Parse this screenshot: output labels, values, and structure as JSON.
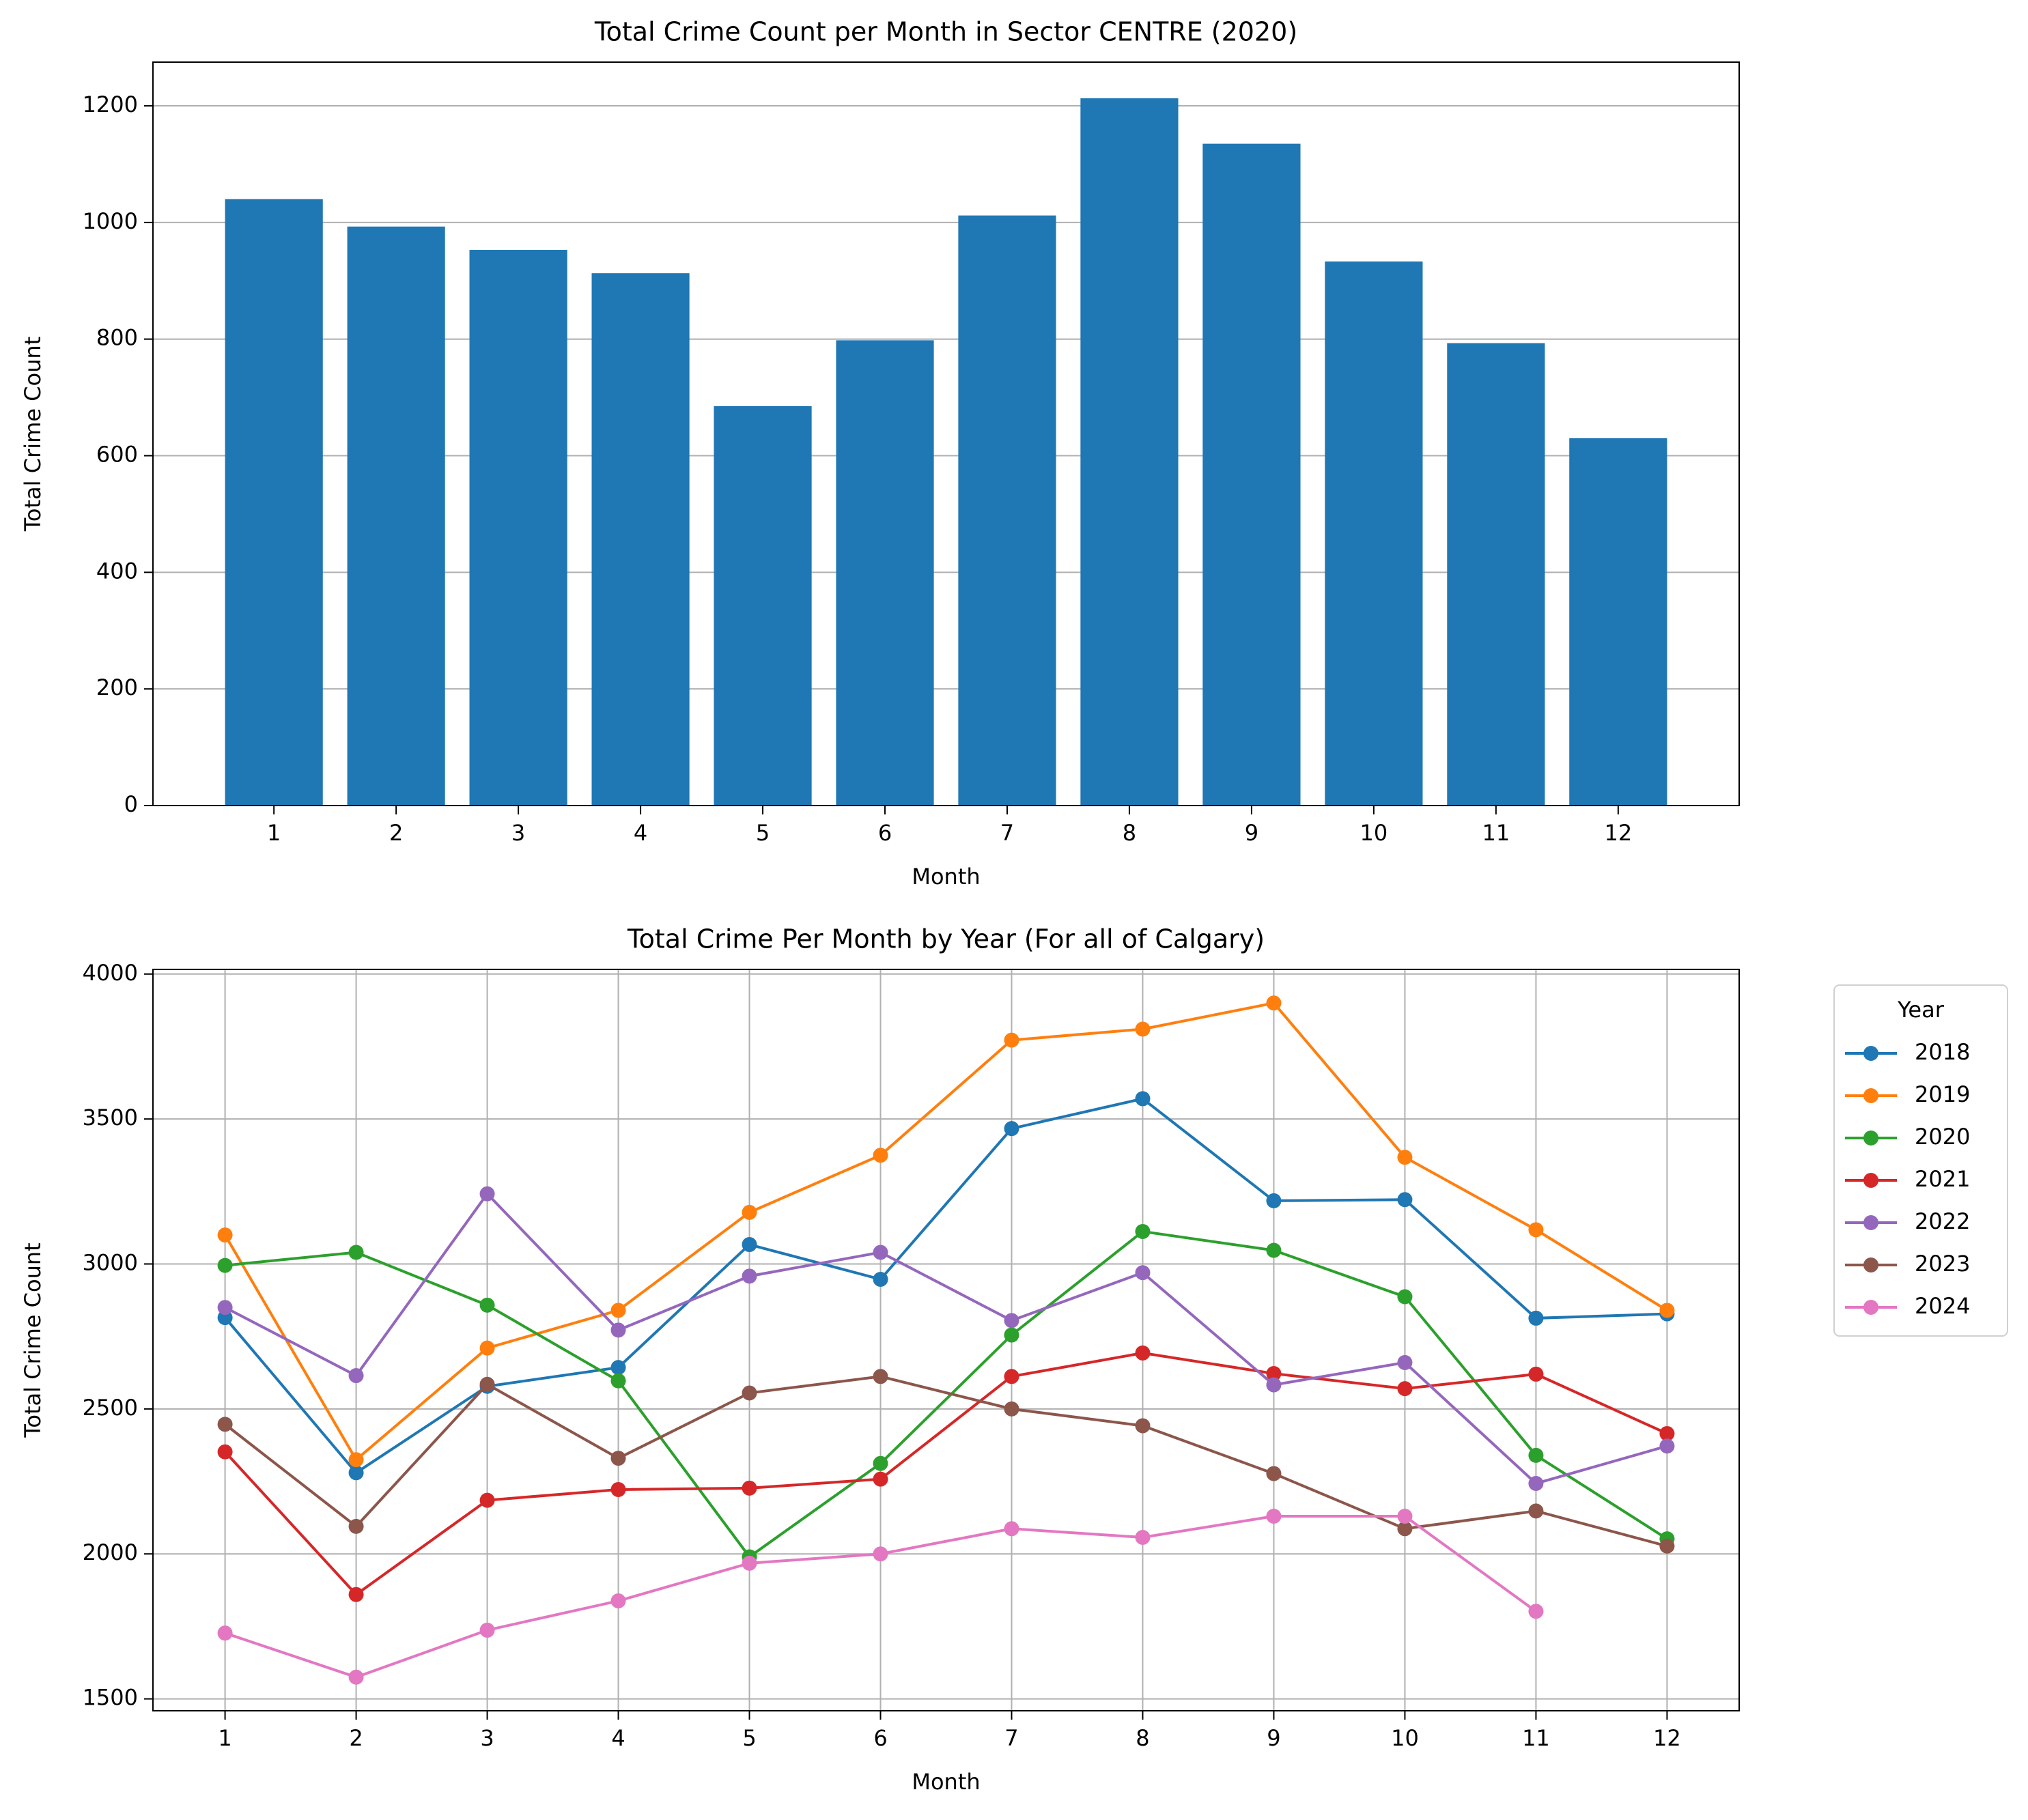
{
  "chart_data": [
    {
      "type": "bar",
      "title": "Total Crime Count per Month in Sector CENTRE (2020)",
      "x_label": "Month",
      "y_label": "Total Crime Count",
      "x": [
        1,
        2,
        3,
        4,
        5,
        6,
        7,
        8,
        9,
        10,
        11,
        12
      ],
      "values": [
        1040,
        993,
        953,
        913,
        685,
        798,
        1012,
        1213,
        1135,
        933,
        793,
        630
      ],
      "color": "#1f77b4",
      "xlim": [
        0.01,
        12.99
      ],
      "xticks": [
        1,
        2,
        3,
        4,
        5,
        6,
        7,
        8,
        9,
        10,
        11,
        12
      ],
      "ylim": [
        0,
        1275
      ],
      "yticks": [
        0,
        200,
        400,
        600,
        800,
        1000,
        1200
      ],
      "grid": "y"
    },
    {
      "type": "line",
      "title": "Total Crime Per Month by Year (For all of Calgary)",
      "x_label": "Month",
      "y_label": "Total Crime Count",
      "x": [
        1,
        2,
        3,
        4,
        5,
        6,
        7,
        8,
        9,
        10,
        11,
        12
      ],
      "series": [
        {
          "name": "2018",
          "color": "#1f77b4",
          "values": [
            2815,
            2280,
            2578,
            2643,
            3067,
            2947,
            3467,
            3570,
            3218,
            3222,
            2813,
            2828
          ]
        },
        {
          "name": "2019",
          "color": "#ff7f0e",
          "values": [
            3100,
            2325,
            2710,
            2840,
            3178,
            3375,
            3772,
            3810,
            3900,
            3368,
            3118,
            2840
          ]
        },
        {
          "name": "2020",
          "color": "#2ca02c",
          "values": [
            2995,
            3040,
            2858,
            2597,
            1990,
            2312,
            2755,
            3112,
            3047,
            2887,
            2340,
            2052
          ]
        },
        {
          "name": "2021",
          "color": "#d62728",
          "values": [
            2352,
            1860,
            2185,
            2222,
            2227,
            2258,
            2612,
            2693,
            2622,
            2570,
            2620,
            2415
          ]
        },
        {
          "name": "2022",
          "color": "#9467bd",
          "values": [
            2850,
            2615,
            3242,
            2772,
            2958,
            3040,
            2805,
            2970,
            2583,
            2660,
            2243,
            2372
          ]
        },
        {
          "name": "2023",
          "color": "#8c564b",
          "values": [
            2447,
            2095,
            2585,
            2330,
            2555,
            2612,
            2500,
            2442,
            2277,
            2087,
            2148,
            2027
          ]
        },
        {
          "name": "2024",
          "color": "#e377c2",
          "values": [
            1727,
            1575,
            1737,
            1838,
            1968,
            2000,
            2087,
            2057,
            2130,
            2130,
            1802,
            null
          ]
        }
      ],
      "xlim": [
        0.45,
        12.55
      ],
      "xticks": [
        1,
        2,
        3,
        4,
        5,
        6,
        7,
        8,
        9,
        10,
        11,
        12
      ],
      "ylim": [
        1459,
        4016
      ],
      "yticks": [
        1500,
        2000,
        2500,
        3000,
        3500,
        4000
      ],
      "grid": "both",
      "legend_title": "Year",
      "legend": "outside upper right"
    }
  ]
}
